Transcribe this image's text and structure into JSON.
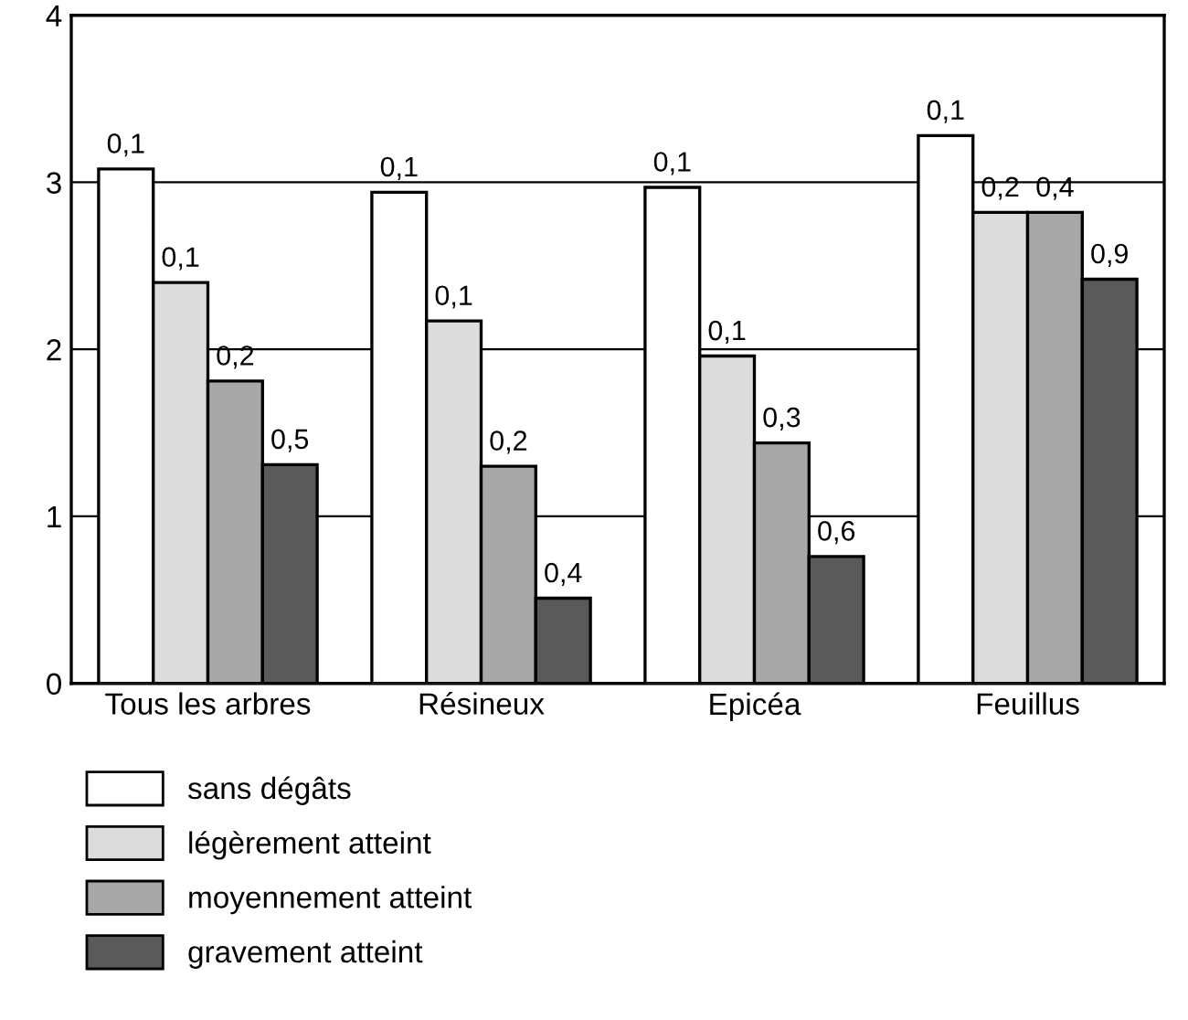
{
  "chart_data": {
    "type": "bar",
    "categories": [
      "Tous les arbres",
      "Résineux",
      "Epicéa",
      "Feuillus"
    ],
    "series": [
      {
        "name": "sans dégâts",
        "color": "#ffffff",
        "values": [
          3.08,
          2.94,
          2.97,
          3.28
        ]
      },
      {
        "name": "légèrement atteint",
        "color": "#dcdcdc",
        "values": [
          2.4,
          2.17,
          1.96,
          2.82
        ]
      },
      {
        "name": "moyennement atteint",
        "color": "#a8a8a8",
        "values": [
          1.81,
          1.3,
          1.44,
          2.82
        ]
      },
      {
        "name": "gravement atteint",
        "color": "#5a5a5a",
        "values": [
          1.31,
          0.51,
          0.76,
          2.42
        ]
      }
    ],
    "annotations": [
      "0,1",
      "0,1",
      "0,2",
      "0,5",
      "0,1",
      "0,1",
      "0,2",
      "0,4",
      "0,1",
      "0,1",
      "0,3",
      "0,6",
      "0,1",
      "0,2",
      "0,4",
      "0,9"
    ],
    "ylim": [
      0,
      4
    ],
    "yticks": [
      0,
      1,
      2,
      3,
      4
    ],
    "grid": "y",
    "legend": "bottom"
  }
}
